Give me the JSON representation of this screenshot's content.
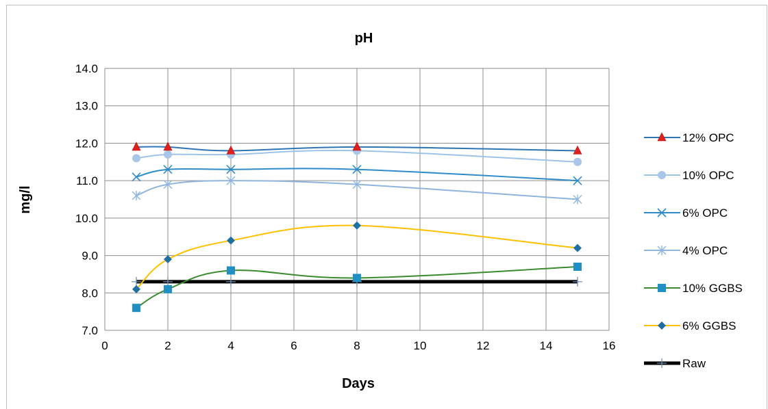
{
  "chart_data": {
    "type": "line",
    "title": "pH",
    "xlabel": "Days",
    "ylabel": "mg/l",
    "xlim": [
      0,
      16
    ],
    "ylim": [
      7.0,
      14.0
    ],
    "xticks": [
      0,
      2,
      4,
      6,
      8,
      10,
      12,
      14,
      16
    ],
    "yticks": [
      7.0,
      8.0,
      9.0,
      10.0,
      11.0,
      12.0,
      13.0,
      14.0
    ],
    "ytick_labels": [
      "7.0",
      "8.0",
      "9.0",
      "10.0",
      "11.0",
      "12.0",
      "13.0",
      "14.0"
    ],
    "grid": true,
    "legend_position": "right",
    "smooth": true,
    "x": [
      1,
      2,
      4,
      8,
      15
    ],
    "series": [
      {
        "name": "12% OPC",
        "values": [
          11.9,
          11.9,
          11.8,
          11.9,
          11.8
        ],
        "color": "#2e75b6",
        "marker": "triangle",
        "marker_color": "#e0201a"
      },
      {
        "name": "10% OPC",
        "values": [
          11.6,
          11.7,
          11.7,
          11.8,
          11.5
        ],
        "color": "#9dc3e6",
        "marker": "circle",
        "marker_color": "#a9c6e8"
      },
      {
        "name": "6% OPC",
        "values": [
          11.1,
          11.3,
          11.3,
          11.3,
          11.0
        ],
        "color": "#2e8bc9",
        "marker": "x",
        "marker_color": "#2e8bc9"
      },
      {
        "name": "4% OPC",
        "values": [
          10.6,
          10.9,
          11.0,
          10.9,
          10.5
        ],
        "color": "#8fb4de",
        "marker": "star",
        "marker_color": "#8fb4de"
      },
      {
        "name": "10% GGBS",
        "values": [
          7.6,
          8.1,
          8.6,
          8.4,
          8.7
        ],
        "color": "#3a8a2e",
        "marker": "square",
        "marker_color": "#1f8fc4"
      },
      {
        "name": "6% GGBS",
        "values": [
          8.1,
          8.9,
          9.4,
          9.8,
          9.2
        ],
        "color": "#ffc000",
        "marker": "diamond",
        "marker_color": "#1f6fa0"
      },
      {
        "name": "Raw",
        "values": [
          8.3,
          8.3,
          8.3,
          8.3,
          8.3
        ],
        "color": "#000000",
        "marker": "plus",
        "marker_color": "#6f8fb0",
        "line_width": 5
      }
    ]
  }
}
